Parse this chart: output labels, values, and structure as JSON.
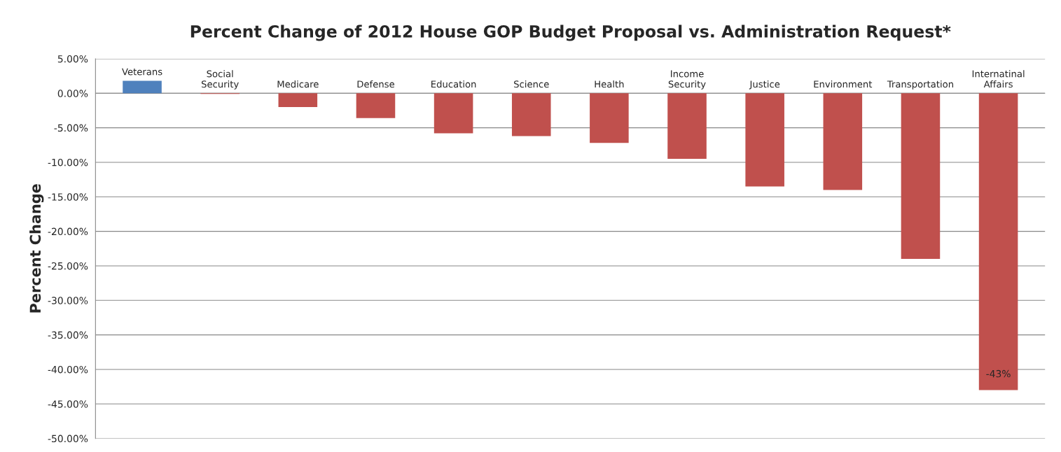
{
  "chart_data": {
    "type": "bar",
    "title": "Percent Change of 2012 House GOP Budget Proposal vs. Administration Request*",
    "ylabel": "Percent Change",
    "categories": [
      "Veterans",
      "Social\nSecurity",
      "Medicare",
      "Defense",
      "Education",
      "Science",
      "Health",
      "Income\nSecurity",
      "Justice",
      "Environment",
      "Transportation",
      "Internatinal\nAffairs"
    ],
    "values": [
      1.8,
      -0.1,
      -2.0,
      -3.6,
      -5.8,
      -6.2,
      -7.2,
      -9.5,
      -13.5,
      -14.0,
      -24.0,
      -43.0
    ],
    "colors": [
      "#4f81bd",
      "#c0504d",
      "#c0504d",
      "#c0504d",
      "#c0504d",
      "#c0504d",
      "#c0504d",
      "#c0504d",
      "#c0504d",
      "#c0504d",
      "#c0504d",
      "#c0504d"
    ],
    "value_labels": [
      null,
      null,
      null,
      null,
      null,
      null,
      null,
      null,
      null,
      null,
      null,
      "-43%"
    ],
    "ylim": [
      -50,
      5
    ],
    "yticks": [
      {
        "value": 5,
        "label": "5.00%"
      },
      {
        "value": 0,
        "label": "0.00%"
      },
      {
        "value": -5,
        "label": "-5.00%"
      },
      {
        "value": -10,
        "label": "-10.00%"
      },
      {
        "value": -15,
        "label": "-15.00%"
      },
      {
        "value": -20,
        "label": "-20.00%"
      },
      {
        "value": -25,
        "label": "-25.00%"
      },
      {
        "value": -30,
        "label": "-30.00%"
      },
      {
        "value": -35,
        "label": "-35.00%"
      },
      {
        "value": -40,
        "label": "-40.00%"
      },
      {
        "value": -45,
        "label": "-45.00%"
      },
      {
        "value": -50,
        "label": "-50.00%"
      }
    ],
    "grid": "y"
  }
}
